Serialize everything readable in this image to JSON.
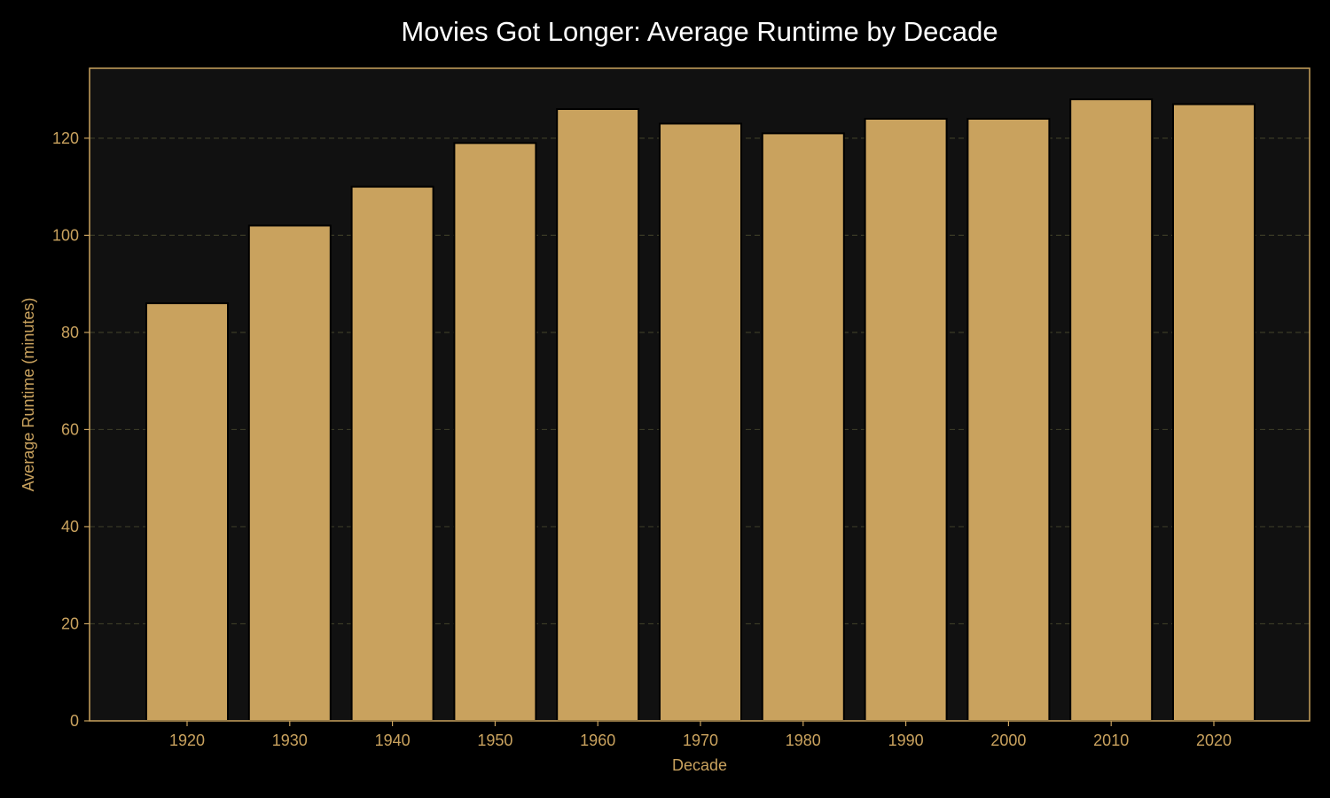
{
  "colors": {
    "background": "#000000",
    "plot_background": "#111111",
    "bar_fill": "#c9a25e",
    "bar_edge": "#000000",
    "axis": "#c9a25e",
    "grid": "#3a3a26",
    "title": "#ffffff",
    "text": "#c9a25e"
  },
  "chart_data": {
    "type": "bar",
    "title": "Movies Got Longer: Average Runtime by Decade",
    "xlabel": "Decade",
    "ylabel": "Average Runtime (minutes)",
    "categories": [
      "1920",
      "1930",
      "1940",
      "1950",
      "1960",
      "1970",
      "1980",
      "1990",
      "2000",
      "2010",
      "2020"
    ],
    "values": [
      86,
      102,
      110,
      119,
      126,
      123,
      121,
      124,
      124,
      128,
      127
    ],
    "ylim": [
      0,
      134.4
    ],
    "yticks": [
      0,
      20,
      40,
      60,
      80,
      100,
      120
    ],
    "grid": "y-dashed",
    "legend": "none"
  }
}
